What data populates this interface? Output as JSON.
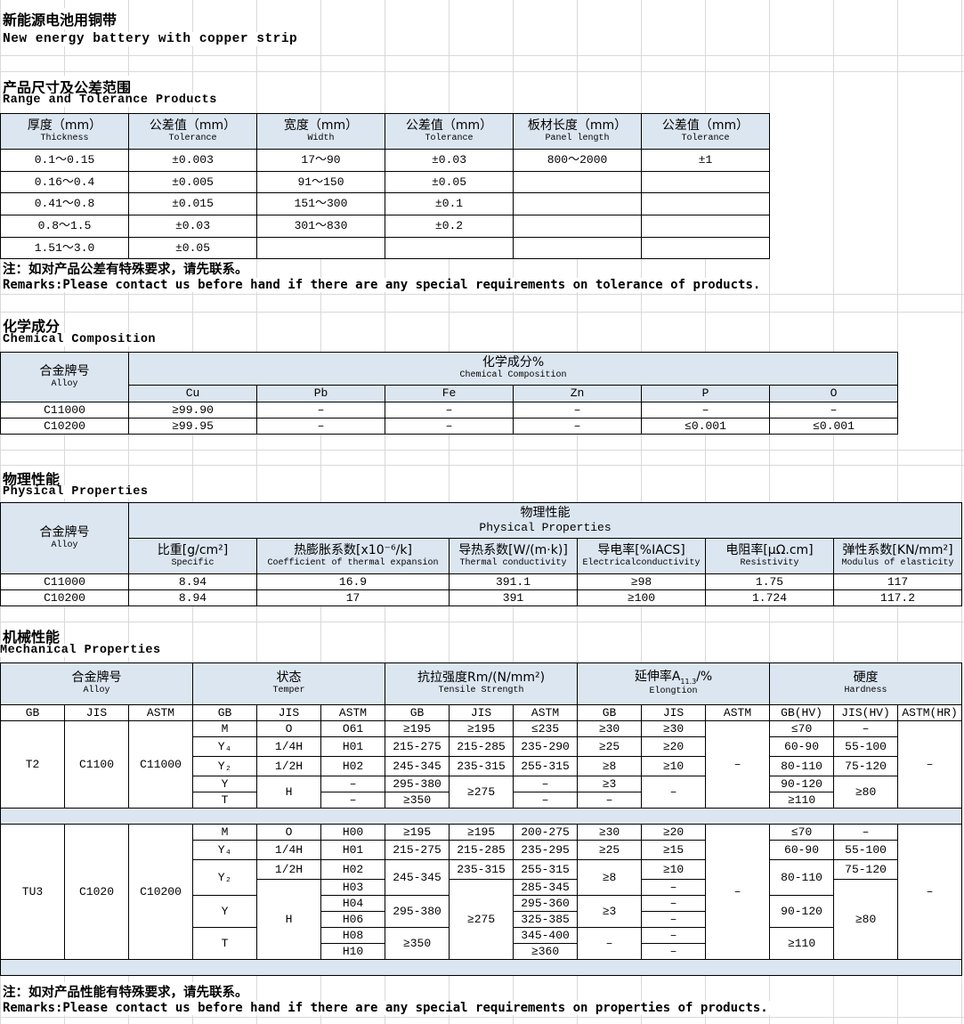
{
  "title": {
    "zh": "新能源电池用铜带",
    "en": "New energy battery with copper strip"
  },
  "colors": {
    "header_fill": "#dce6f1",
    "border": "#000000",
    "gridline": "#d9d9d9"
  },
  "range": {
    "title_zh": "产品尺寸及公差范围",
    "title_en": "Range and Tolerance Products",
    "headers": [
      {
        "zh": "厚度（mm）",
        "en": "Thickness"
      },
      {
        "zh": "公差值（mm）",
        "en": "Tolerance"
      },
      {
        "zh": "宽度（mm）",
        "en": "Width"
      },
      {
        "zh": "公差值（mm）",
        "en": "Tolerance"
      },
      {
        "zh": "板材长度（mm）",
        "en": "Panel length"
      },
      {
        "zh": "公差值（mm）",
        "en": "Tolerance"
      }
    ],
    "rows": [
      [
        "0.1～0.15",
        "±0.003",
        "17～90",
        "±0.03",
        "800～2000",
        "±1"
      ],
      [
        "0.16～0.4",
        "±0.005",
        "91～150",
        "±0.05",
        "",
        ""
      ],
      [
        "0.41～0.8",
        "±0.015",
        "151～300",
        "±0.1",
        "",
        ""
      ],
      [
        "0.8～1.5",
        "±0.03",
        "301～830",
        "±0.2",
        "",
        ""
      ],
      [
        "1.51～3.0",
        "±0.05",
        "",
        "",
        "",
        ""
      ]
    ],
    "remark_zh": "注：如对产品公差有特殊要求，请先联系。",
    "remark_en": "Remarks:Please contact us before hand if there are any special requirements on tolerance of products."
  },
  "chemical": {
    "title_zh": "化学成分",
    "title_en": "Chemical Composition",
    "alloy_zh": "合金牌号",
    "alloy_en": "Alloy",
    "group_zh": "化学成分%",
    "group_en": "Chemical Composition",
    "elements": [
      "Cu",
      "Pb",
      "Fe",
      "Zn",
      "P",
      "O"
    ],
    "rows": [
      [
        "C11000",
        "≥99.90",
        "–",
        "–",
        "–",
        "–",
        "–"
      ],
      [
        "C10200",
        "≥99.95",
        "–",
        "–",
        "–",
        "≤0.001",
        "≤0.001"
      ]
    ]
  },
  "physical": {
    "title_zh": "物理性能",
    "title_en": "Physical Properties",
    "alloy_zh": "合金牌号",
    "alloy_en": "Alloy",
    "group_zh": "物理性能",
    "group_en": "Physical Properties",
    "headers": [
      {
        "zh": "比重[g/cm²]",
        "en": "Specific"
      },
      {
        "zh": "热膨胀系数[x10⁻⁶/k]",
        "en": "Coefficient of thermal expansion"
      },
      {
        "zh": "导热系数[W/(m·k)]",
        "en": "Thermal conductivity"
      },
      {
        "zh": "导电率[%IACS]",
        "en": "Electricalconductivity"
      },
      {
        "zh": "电阻率[μΩ.cm]",
        "en": "Resistivity"
      },
      {
        "zh": "弹性系数[KN/mm²]",
        "en": "Modulus of elasticity"
      }
    ],
    "rows": [
      [
        "C11000",
        "8.94",
        "16.9",
        "391.1",
        "≥98",
        "1.75",
        "117"
      ],
      [
        "C10200",
        "8.94",
        "17",
        "391",
        "≥100",
        "1.724",
        "117.2"
      ]
    ]
  },
  "mechanical": {
    "title_zh": "机械性能",
    "title_en": "Mechanical Properties",
    "groups": [
      {
        "zh": "合金牌号",
        "en": "Alloy"
      },
      {
        "zh": "状态",
        "en": "Temper"
      },
      {
        "zh": "抗拉强度Rm/(N/mm²)",
        "en": "Tensile Strength"
      },
      {
        "zh": "延伸率A",
        "sub": "11.3",
        "zh2": "/%",
        "en": "Elongtion"
      },
      {
        "zh": "硬度",
        "en": "Hardness"
      }
    ],
    "subheaders": [
      "GB",
      "JIS",
      "ASTM",
      "GB",
      "JIS",
      "ASTM",
      "GB",
      "JIS",
      "ASTM",
      "GB",
      "JIS",
      "ASTM",
      "GB(HV)",
      "JIS(HV)",
      "ASTM(HR)"
    ],
    "t2_rows": [
      [
        "T2",
        "C1100",
        "C11000",
        "M",
        "O",
        "O61",
        "≥195",
        "≥195",
        "≤235",
        "≥30",
        "≥30",
        "–",
        "≤70",
        "–",
        "–"
      ],
      [
        "Y₄",
        "1/4H",
        "H01",
        "215-275",
        "215-285",
        "235-290",
        "≥25",
        "≥20",
        "60-90",
        "55-100"
      ],
      [
        "Y₂",
        "1/2H",
        "H02",
        "245-345",
        "235-315",
        "255-315",
        "≥8",
        "≥10",
        "80-110",
        "75-120"
      ],
      [
        "Y",
        "H",
        "–",
        "295-380",
        "≥275",
        "–",
        "≥3",
        "–",
        "90-120",
        "≥80"
      ],
      [
        "T",
        "–",
        "≥350",
        "–",
        "–",
        "≥110"
      ]
    ],
    "tu3_rows": [
      [
        "TU3",
        "C1020",
        "C10200",
        "M",
        "O",
        "H00",
        "≥195",
        "≥195",
        "200-275",
        "≥30",
        "≥20",
        "–",
        "≤70",
        "–",
        "–"
      ],
      [
        "Y₄",
        "1/4H",
        "H01",
        "215-275",
        "215-285",
        "235-295",
        "≥25",
        "≥15",
        "60-90",
        "55-100"
      ],
      [
        "Y₂",
        "1/2H",
        "H02",
        "245-345",
        "235-315",
        "255-315",
        "≥8",
        "≥10",
        "80-110",
        "75-120"
      ],
      [
        "H",
        "H03",
        "≥275",
        "285-345",
        "–",
        "≥80"
      ],
      [
        "Y",
        "H04",
        "295-380",
        "295-360",
        "≥3",
        "–",
        "90-120"
      ],
      [
        "H06",
        "325-385",
        "–"
      ],
      [
        "T",
        "H08",
        "≥350",
        "345-400",
        "–",
        "–",
        "≥110"
      ],
      [
        "H10",
        "≥360",
        "–"
      ]
    ],
    "remark_zh": "注：如对产品性能有特殊要求，请先联系。",
    "remark_en": "Remarks:Please contact us before hand if there are any special requirements on properties of products."
  }
}
